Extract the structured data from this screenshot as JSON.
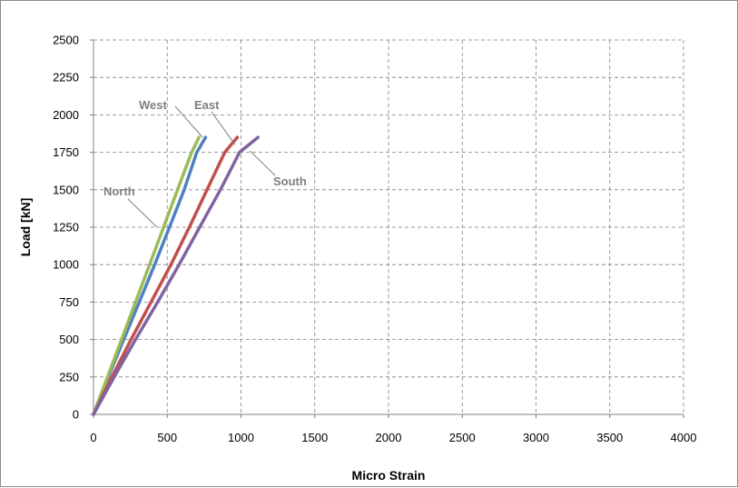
{
  "chart_data": {
    "type": "line",
    "title": "",
    "xlabel": "Micro Strain",
    "ylabel": "Load [kN]",
    "xlim": [
      0,
      4000
    ],
    "ylim": [
      0,
      2500
    ],
    "x_ticks": [
      "0",
      "500",
      "1000",
      "1500",
      "2000",
      "2500",
      "3000",
      "3500",
      "4000"
    ],
    "y_ticks": [
      "0",
      "250",
      "500",
      "750",
      "1000",
      "1250",
      "1500",
      "1750",
      "2000",
      "2250",
      "2500"
    ],
    "grid": true,
    "legend": "none",
    "series": [
      {
        "name": "West",
        "color": "#4f81bd",
        "points": [
          [
            0,
            0
          ],
          [
            100,
            250
          ],
          [
            205,
            500
          ],
          [
            310,
            750
          ],
          [
            415,
            1000
          ],
          [
            515,
            1250
          ],
          [
            615,
            1500
          ],
          [
            700,
            1750
          ],
          [
            760,
            1850
          ]
        ]
      },
      {
        "name": "North",
        "color": "#9bbb59",
        "points": [
          [
            0,
            0
          ],
          [
            95,
            250
          ],
          [
            190,
            500
          ],
          [
            285,
            750
          ],
          [
            380,
            1000
          ],
          [
            475,
            1250
          ],
          [
            570,
            1500
          ],
          [
            665,
            1750
          ],
          [
            715,
            1850
          ]
        ]
      },
      {
        "name": "East",
        "color": "#c0504d",
        "points": [
          [
            0,
            0
          ],
          [
            125,
            250
          ],
          [
            255,
            500
          ],
          [
            390,
            750
          ],
          [
            525,
            1000
          ],
          [
            650,
            1250
          ],
          [
            770,
            1500
          ],
          [
            890,
            1750
          ],
          [
            975,
            1850
          ]
        ]
      },
      {
        "name": "South",
        "color": "#8064a2",
        "points": [
          [
            0,
            0
          ],
          [
            140,
            250
          ],
          [
            285,
            500
          ],
          [
            435,
            750
          ],
          [
            580,
            1000
          ],
          [
            720,
            1250
          ],
          [
            860,
            1500
          ],
          [
            990,
            1750
          ],
          [
            1115,
            1850
          ]
        ]
      }
    ]
  }
}
